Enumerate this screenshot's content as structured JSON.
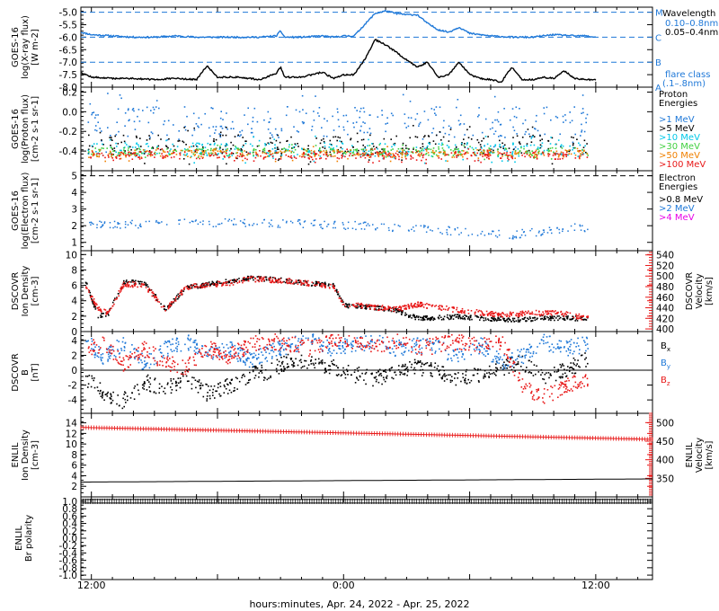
{
  "footer": {
    "xaxis_label": "hours:minutes, Apr. 24, 2022 - Apr. 25, 2022"
  },
  "time_axis": {
    "tick_labels": [
      "12:00",
      "0:00",
      "12:00"
    ],
    "tick_hours": [
      12,
      24,
      36
    ],
    "range_hours": [
      11.5,
      38.7
    ]
  },
  "colors": {
    "black": "#000000",
    "blue": "#1e78d8",
    "red": "#e81818",
    "cyan": "#00c8e8",
    "green": "#40d040",
    "yellow": "#e8e000",
    "orange": "#f08000",
    "magenta": "#e800e8"
  },
  "chart_data": [
    {
      "id": "xray",
      "type": "line",
      "ylabel": [
        "GOES-16",
        "log(X-ray flux)",
        "[W m-2]"
      ],
      "ylim": [
        -8.0,
        -4.8
      ],
      "yticks": [
        -5.0,
        -5.5,
        -6.0,
        -6.5,
        -7.0,
        -7.5,
        -8.0
      ],
      "ytick_labels": [
        "-5.0",
        "-5.5",
        "-6.0",
        "-6.5",
        "-7.0",
        "-7.5",
        "-8.0"
      ],
      "flare_levels": [
        {
          "value": -5.0,
          "label": "M"
        },
        {
          "value": -6.0,
          "label": "C"
        },
        {
          "value": -7.0,
          "label": "B"
        },
        {
          "value": -8.0,
          "label": "A"
        }
      ],
      "legend": {
        "title": "Wavelength",
        "entries": [
          {
            "text": "0.10–0.8nm",
            "color": "blue"
          },
          {
            "text": "0.05–0.4nm",
            "color": "black"
          }
        ],
        "note": [
          "flare class",
          "(.1–.8nm)"
        ]
      },
      "series": [
        {
          "name": "0.10–0.8nm",
          "color": "blue",
          "x": [
            11.5,
            12,
            13,
            14,
            15,
            16,
            17,
            18,
            19,
            20,
            20.8,
            21,
            21.2,
            22,
            23,
            23.5,
            24,
            24.5,
            25,
            25.5,
            26,
            26.5,
            27,
            27.5,
            28,
            28.5,
            29,
            29.5,
            30,
            30.5,
            31,
            32,
            33,
            34,
            35,
            35.5,
            36
          ],
          "y": [
            -5.8,
            -5.9,
            -5.95,
            -6.0,
            -6.0,
            -5.95,
            -6.0,
            -6.0,
            -6.0,
            -6.0,
            -5.95,
            -5.75,
            -6.0,
            -6.0,
            -5.95,
            -6.0,
            -5.95,
            -5.95,
            -5.5,
            -5.05,
            -4.95,
            -5.05,
            -5.1,
            -5.1,
            -5.45,
            -5.7,
            -5.8,
            -5.6,
            -5.85,
            -5.9,
            -5.95,
            -6.0,
            -6.0,
            -5.9,
            -5.95,
            -5.95,
            -6.0
          ]
        },
        {
          "name": "0.05–0.4nm",
          "color": "black",
          "x": [
            11.5,
            12,
            13,
            14,
            15,
            16,
            17,
            17.5,
            18,
            19,
            20,
            20.8,
            21,
            21.2,
            22,
            23,
            23.5,
            24,
            24.5,
            25,
            25.5,
            26,
            26.5,
            27,
            27.5,
            28,
            28.5,
            29,
            29.5,
            30,
            30.5,
            31,
            31.5,
            32,
            32.5,
            33,
            33.5,
            34,
            34.5,
            35,
            35.5,
            36
          ],
          "y": [
            -7.4,
            -7.6,
            -7.65,
            -7.65,
            -7.7,
            -7.65,
            -7.7,
            -7.15,
            -7.6,
            -7.6,
            -7.7,
            -7.45,
            -7.2,
            -7.6,
            -7.6,
            -7.4,
            -7.65,
            -7.5,
            -7.5,
            -6.9,
            -6.1,
            -6.3,
            -6.6,
            -6.9,
            -7.2,
            -7.0,
            -7.6,
            -7.5,
            -7.0,
            -7.5,
            -7.65,
            -7.7,
            -7.8,
            -7.2,
            -7.7,
            -7.7,
            -7.6,
            -7.65,
            -7.35,
            -7.65,
            -7.7,
            -7.7
          ]
        }
      ]
    },
    {
      "id": "proton",
      "type": "scatter",
      "ylabel": [
        "GOES-16",
        "log(Proton flux)",
        "[cm-2 s-1 sr-1]"
      ],
      "ylim": [
        -0.6,
        0.25
      ],
      "yticks": [
        0.2,
        0.0,
        -0.2,
        -0.4
      ],
      "ytick_labels": [
        "0.2",
        "0.0",
        "-0.2",
        "-0.4"
      ],
      "legend": {
        "title": [
          "Proton",
          "Energies"
        ],
        "entries": [
          {
            "text": ">1 MeV",
            "color": "blue"
          },
          {
            "text": ">5 MeV",
            "color": "black"
          },
          {
            "text": ">10 MeV",
            "color": "cyan"
          },
          {
            "text": ">30 MeV",
            "color": "green"
          },
          {
            "text": ">50 MeV",
            "color": "orange"
          },
          {
            "text": ">100 MeV",
            "color": "red"
          }
        ]
      },
      "series": [
        {
          "name": ">1 MeV",
          "color": "blue",
          "center": -0.1,
          "spread": 0.16
        },
        {
          "name": ">5 MeV",
          "color": "black",
          "center": -0.33,
          "spread": 0.1
        },
        {
          "name": ">10 MeV",
          "color": "cyan",
          "center": -0.38,
          "spread": 0.07
        },
        {
          "name": ">30 MeV",
          "color": "green",
          "center": -0.4,
          "spread": 0.04
        },
        {
          "name": ">50 MeV",
          "color": "orange",
          "center": -0.42,
          "spread": 0.04
        },
        {
          "name": ">100 MeV",
          "color": "red",
          "center": -0.44,
          "spread": 0.04
        }
      ]
    },
    {
      "id": "electron",
      "type": "scatter",
      "ylabel": [
        "GOES-16",
        "log(Electron flux)",
        "[cm-2 s-1 sr-1]"
      ],
      "ylim": [
        0.5,
        5.3
      ],
      "yticks": [
        5,
        4,
        3,
        2,
        1
      ],
      "ytick_labels": [
        "5",
        "4",
        "3",
        "2",
        "1"
      ],
      "reference_line": 5.0,
      "legend": {
        "title": [
          "Electron",
          "Energies"
        ],
        "entries": [
          {
            "text": ">0.8 MeV",
            "color": "black"
          },
          {
            "text": ">2 MeV",
            "color": "blue"
          },
          {
            "text": ">4 MeV",
            "color": "magenta"
          }
        ]
      },
      "series": [
        {
          "name": ">2 MeV",
          "color": "blue",
          "x": [
            12.0,
            16.0,
            20.0,
            23.5,
            27.0,
            32.0,
            35.0
          ],
          "y": [
            2.1,
            2.2,
            2.2,
            2.1,
            1.9,
            1.5,
            1.9
          ]
        }
      ]
    },
    {
      "id": "density",
      "type": "scatter",
      "ylabel": [
        "DSCOVR",
        "Ion Density",
        "[cm-3]"
      ],
      "ylim": [
        0,
        10.5
      ],
      "yticks": [
        10,
        8,
        6,
        4,
        2,
        0
      ],
      "ytick_labels": [
        "10",
        "8",
        "6",
        "4",
        "2",
        "0"
      ],
      "y2label": [
        "DSCOVR",
        "Velocity",
        "[km/s]"
      ],
      "y2lim": [
        395,
        548
      ],
      "y2ticks": [
        540,
        520,
        500,
        480,
        460,
        440,
        420,
        400
      ],
      "y2tick_labels": [
        "540",
        "520",
        "500",
        "480",
        "460",
        "440",
        "420",
        "400"
      ],
      "series": [
        {
          "name": "Ion Density",
          "color": "black",
          "axis": "left",
          "x": [
            11.7,
            12.3,
            12.8,
            13.5,
            14.5,
            15.5,
            16.5,
            17.5,
            18.5,
            19.5,
            20.5,
            21.5,
            22.5,
            23.5,
            24.0,
            24.5,
            25.5,
            26.5,
            27.5,
            28.5,
            29.5,
            30.5,
            31.5,
            32.5,
            33.5,
            34.5,
            35.5
          ],
          "y": [
            6.5,
            2.0,
            2.5,
            6.5,
            6.4,
            3.0,
            5.8,
            6.2,
            6.6,
            7.0,
            6.9,
            6.6,
            6.3,
            6.2,
            3.5,
            3.4,
            3.2,
            2.8,
            1.8,
            1.9,
            2.0,
            1.8,
            1.7,
            1.6,
            1.9,
            1.8,
            1.8
          ]
        },
        {
          "name": "Velocity",
          "color": "red",
          "axis": "right",
          "x": [
            11.7,
            12.3,
            12.8,
            13.5,
            14.5,
            15.5,
            16.5,
            17.5,
            18.5,
            19.5,
            20.5,
            21.5,
            22.5,
            23.5,
            24.0,
            24.5,
            25.5,
            26.5,
            27.5,
            28.5,
            29.5,
            30.5,
            31.5,
            32.5,
            33.5,
            34.5,
            35.5
          ],
          "y": [
            482,
            438,
            432,
            486,
            484,
            438,
            480,
            485,
            488,
            496,
            494,
            492,
            486,
            482,
            445,
            446,
            442,
            438,
            448,
            442,
            436,
            432,
            428,
            430,
            432,
            430,
            422
          ]
        }
      ]
    },
    {
      "id": "bfield",
      "type": "scatter",
      "ylabel": [
        "DSCOVR",
        "B",
        "[nT]"
      ],
      "ylim": [
        -5.8,
        5.2
      ],
      "yticks": [
        4,
        2,
        0,
        -2,
        -4
      ],
      "ytick_labels": [
        "4",
        "2",
        "0",
        "-2",
        "-4"
      ],
      "zero_line": 0,
      "legend": {
        "entries": [
          {
            "text": "Bx",
            "color": "black"
          },
          {
            "text": "By",
            "color": "blue"
          },
          {
            "text": "Bz",
            "color": "red"
          }
        ]
      },
      "series": [
        {
          "name": "Bx",
          "color": "black",
          "x": [
            11.7,
            12.5,
            13.5,
            14.5,
            15.5,
            16.5,
            17.5,
            18.5,
            19.5,
            20.5,
            21.5,
            22.5,
            23.5,
            24.5,
            25.5,
            26.5,
            27.5,
            28.5,
            29.5,
            30.5,
            31.5,
            32.5,
            33.5,
            34.5,
            35.5
          ],
          "y": [
            -1.0,
            -3.0,
            -4.0,
            -1.5,
            -2.5,
            -1.0,
            -3.0,
            -2.0,
            -0.5,
            0.0,
            1.5,
            1.0,
            0.5,
            -0.5,
            -1.0,
            0.0,
            0.5,
            0.0,
            -1.0,
            -0.5,
            0.5,
            1.0,
            -1.0,
            0.0,
            1.5
          ]
        },
        {
          "name": "By",
          "color": "blue",
          "x": [
            11.7,
            12.5,
            13.5,
            14.5,
            15.5,
            16.5,
            17.5,
            18.5,
            19.5,
            20.5,
            21.5,
            22.5,
            23.5,
            24.5,
            25.5,
            26.5,
            27.5,
            28.5,
            29.5,
            30.5,
            31.5,
            32.5,
            33.5,
            34.5,
            35.5
          ],
          "y": [
            4.0,
            2.0,
            3.5,
            1.0,
            3.0,
            4.0,
            2.0,
            3.0,
            1.5,
            2.5,
            3.5,
            4.0,
            3.0,
            3.5,
            4.0,
            3.0,
            3.5,
            3.0,
            2.0,
            3.5,
            1.0,
            2.0,
            4.0,
            3.0,
            3.5
          ]
        },
        {
          "name": "Bz",
          "color": "red",
          "x": [
            11.7,
            12.5,
            13.5,
            14.5,
            15.5,
            16.5,
            17.5,
            18.5,
            19.5,
            20.5,
            21.5,
            22.5,
            23.5,
            24.5,
            25.5,
            26.5,
            27.5,
            28.5,
            29.5,
            30.5,
            31.5,
            32.5,
            33.5,
            34.5,
            35.5
          ],
          "y": [
            3.0,
            3.5,
            1.0,
            3.0,
            1.0,
            0.5,
            3.0,
            2.0,
            3.5,
            4.0,
            3.5,
            3.0,
            4.0,
            3.5,
            3.5,
            4.0,
            3.0,
            3.5,
            4.0,
            3.5,
            4.0,
            -2.0,
            -3.5,
            -2.0,
            -1.0
          ]
        }
      ]
    },
    {
      "id": "enlil_density",
      "type": "line",
      "ylabel": [
        "ENLIL",
        "Ion Density",
        "[cm-3]"
      ],
      "ylim": [
        0,
        15.8
      ],
      "yticks": [
        14,
        12,
        10,
        8,
        6,
        4,
        2
      ],
      "ytick_labels": [
        "14",
        "12",
        "10",
        "8",
        "6",
        "4",
        "2"
      ],
      "y2label": [
        "ENLIL",
        "Velocity",
        "[km/s]"
      ],
      "y2lim": [
        300,
        525
      ],
      "y2ticks": [
        500,
        450,
        400,
        350
      ],
      "y2tick_labels": [
        "500",
        "450",
        "400",
        "350"
      ],
      "series": [
        {
          "name": "Ion Density",
          "color": "black",
          "axis": "left",
          "x": [
            11.5,
            38.7
          ],
          "y": [
            2.8,
            3.4
          ]
        },
        {
          "name": "Velocity",
          "color": "red",
          "axis": "right",
          "x": [
            11.5,
            38.7
          ],
          "y": [
            487,
            455
          ]
        }
      ]
    },
    {
      "id": "polarity",
      "type": "line",
      "ylabel": [
        "ENLIL",
        "Br polarity"
      ],
      "ylim": [
        -1.12,
        1.12
      ],
      "yticks": [
        1.0,
        0.8,
        0.6,
        0.4,
        0.2,
        0.0,
        -0.2,
        -0.4,
        -0.6,
        -0.8,
        -1.0
      ],
      "ytick_labels": [
        "1.0",
        "0.8",
        "0.6",
        "0.4",
        "0.2",
        "0.0",
        "-0.2",
        "-0.4",
        "-0.6",
        "-0.8",
        "-1.0"
      ],
      "series": [
        {
          "name": "Br polarity",
          "color": "black",
          "x": [
            11.5,
            38.7
          ],
          "y": [
            1.0,
            1.0
          ]
        }
      ]
    }
  ]
}
